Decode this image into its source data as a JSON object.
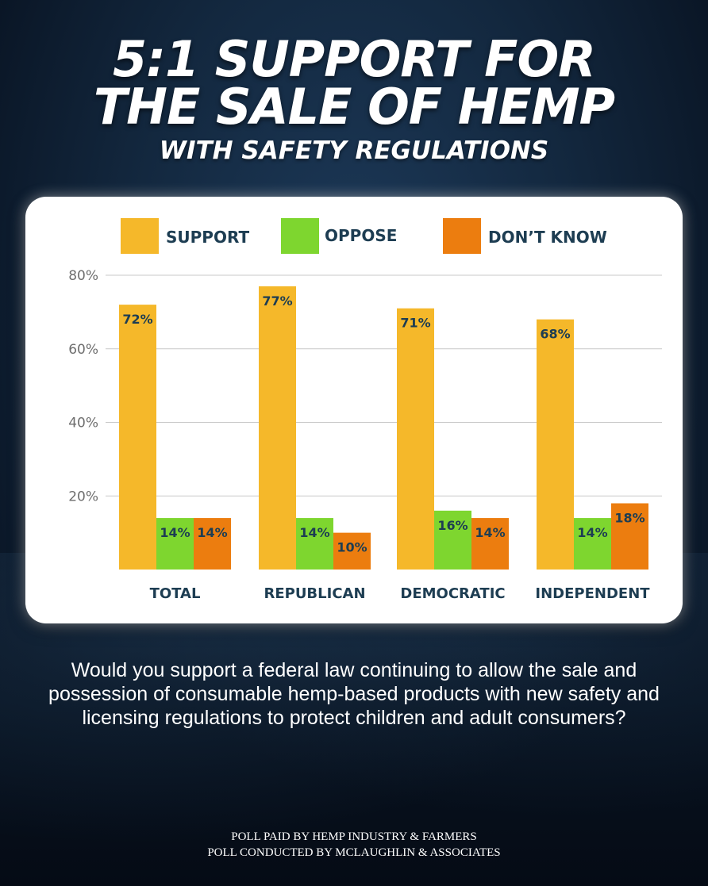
{
  "headline": {
    "line1": "5:1 SUPPORT FOR",
    "line2": "THE SALE OF HEMP",
    "subhead": "WITH SAFETY REGULATIONS"
  },
  "colors": {
    "support": "#f5b82a",
    "oppose": "#7ed62f",
    "dont_know": "#ec7d0f",
    "label_text": "#1d3d52"
  },
  "chart_data": {
    "type": "bar",
    "categories": [
      "TOTAL",
      "REPUBLICAN",
      "DEMOCRATIC",
      "INDEPENDENT"
    ],
    "series": [
      {
        "name": "SUPPORT",
        "values": [
          72,
          77,
          71,
          68
        ],
        "labels": [
          "72%",
          "77%",
          "71%",
          "68%"
        ]
      },
      {
        "name": "OPPOSE",
        "values": [
          14,
          14,
          16,
          14
        ],
        "labels": [
          "14%",
          "14%",
          "16%",
          "14%"
        ]
      },
      {
        "name": "DON’T KNOW",
        "values": [
          14,
          10,
          14,
          18
        ],
        "labels": [
          "14%",
          "10%",
          "14%",
          "18%"
        ]
      }
    ],
    "ylim": [
      0,
      80
    ],
    "yticks": [
      20,
      40,
      60,
      80
    ],
    "ytick_labels": [
      "20%",
      "40%",
      "60%",
      "80%"
    ],
    "grid": true,
    "legend": "top"
  },
  "question": "Would you support a federal law continuing to allow the sale and possession of consumable hemp-based products with new safety and licensing regulations to protect children and adult consumers?",
  "credits": {
    "line1": "POLL PAID BY HEMP INDUSTRY & FARMERS",
    "line2": "POLL CONDUCTED BY MCLAUGHLIN & ASSOCIATES"
  }
}
